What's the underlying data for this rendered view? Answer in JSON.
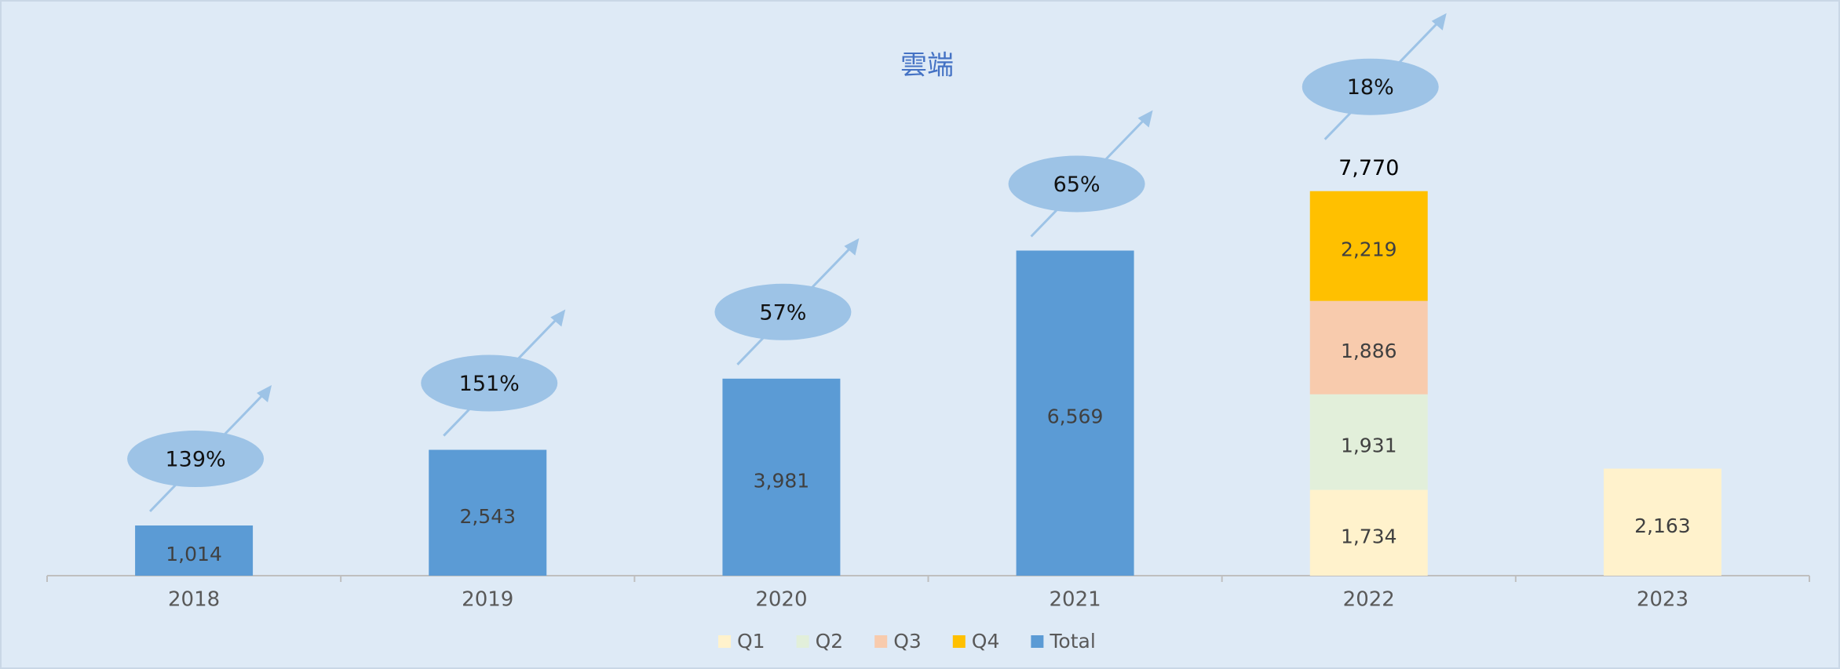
{
  "chart_data": {
    "type": "stacked_bar",
    "title": "雲端",
    "categories": [
      "2018",
      "2019",
      "2020",
      "2021",
      "2022",
      "2023"
    ],
    "series": [
      {
        "name": "Q1",
        "color": "#fff2cc",
        "values": [
          null,
          null,
          null,
          null,
          1734,
          2163
        ],
        "value_labels": [
          null,
          null,
          null,
          null,
          "1,734",
          "2,163"
        ]
      },
      {
        "name": "Q2",
        "color": "#e2efda",
        "values": [
          null,
          null,
          null,
          null,
          1931,
          null
        ],
        "value_labels": [
          null,
          null,
          null,
          null,
          "1,931",
          null
        ]
      },
      {
        "name": "Q3",
        "color": "#f8cbad",
        "values": [
          null,
          null,
          null,
          null,
          1886,
          null
        ],
        "value_labels": [
          null,
          null,
          null,
          null,
          "1,886",
          null
        ]
      },
      {
        "name": "Q4",
        "color": "#ffc000",
        "values": [
          null,
          null,
          null,
          null,
          2219,
          null
        ],
        "value_labels": [
          null,
          null,
          null,
          null,
          "2,219",
          null
        ]
      },
      {
        "name": "Total",
        "color": "#5b9bd5",
        "values": [
          1014,
          2543,
          3981,
          6569,
          null,
          null
        ],
        "value_labels": [
          "1,014",
          "2,543",
          "3,981",
          "6,569",
          null,
          null
        ]
      }
    ],
    "stack_totals": {
      "values": [
        null,
        null,
        null,
        null,
        7770,
        null
      ],
      "value_labels": [
        null,
        null,
        null,
        null,
        "7,770",
        null
      ]
    },
    "growth": {
      "values": [
        139,
        151,
        57,
        65,
        18,
        null
      ],
      "value_labels": [
        "139%",
        "151%",
        "57%",
        "65%",
        "18%",
        null
      ]
    },
    "ylim": [
      0,
      10000
    ],
    "yticks": [],
    "grid": false,
    "legend": "bottom"
  }
}
